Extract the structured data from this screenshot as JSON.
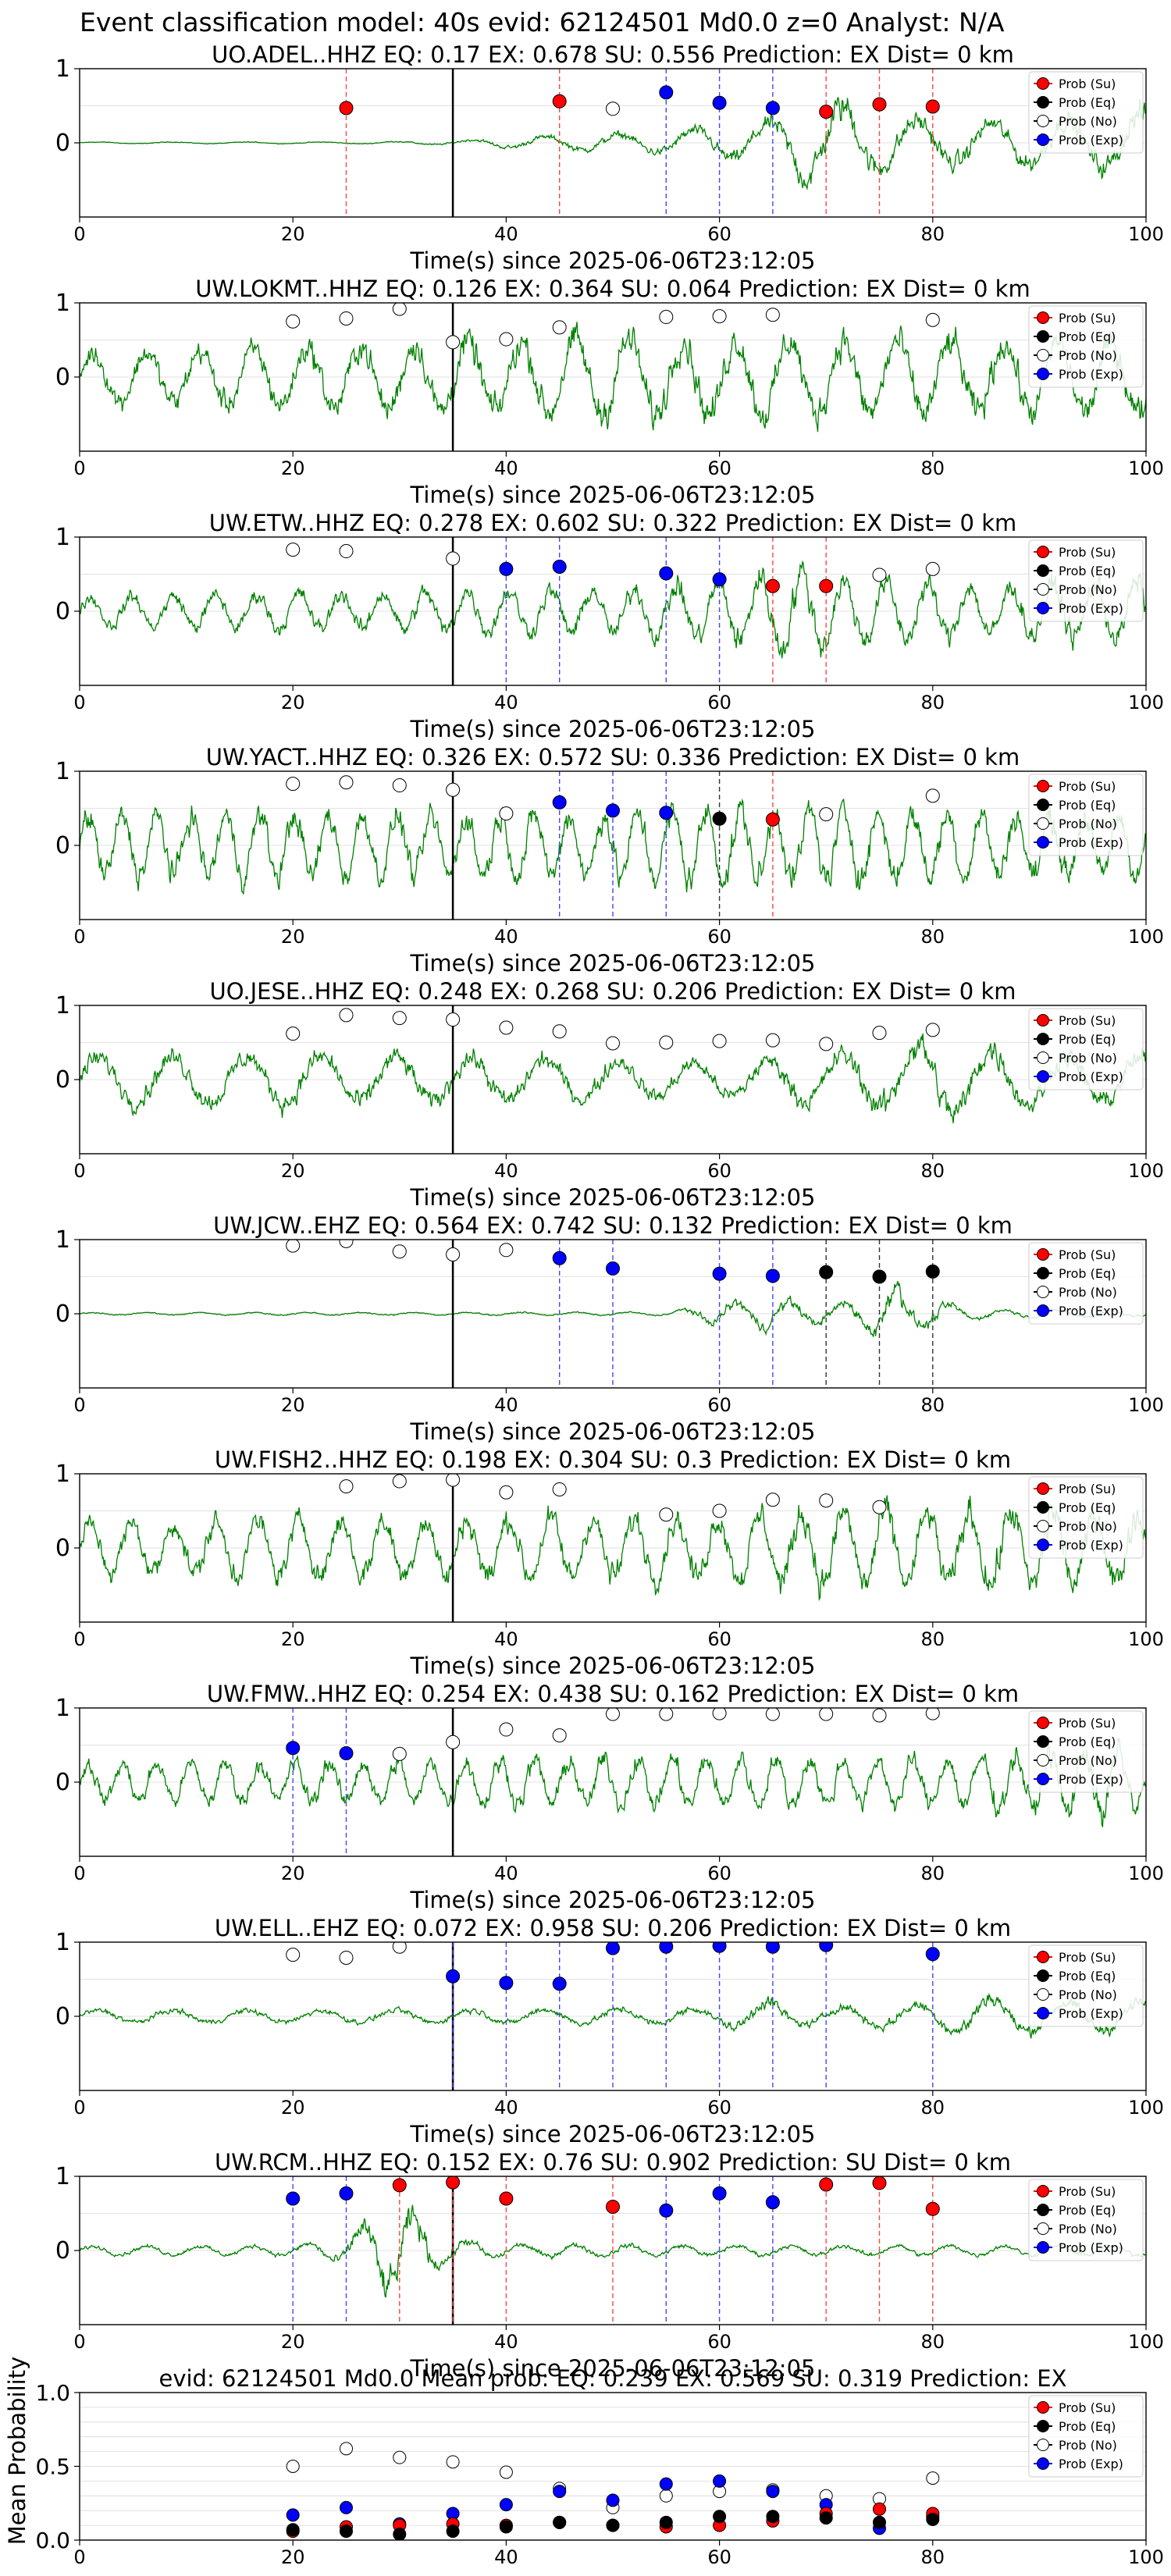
{
  "suptitle": "Event classification model: 40s evid: 62124501 Md0.0 z=0 Analyst: N/A",
  "legend_labels": [
    "Prob (Su)",
    "Prob (Eq)",
    "Prob (No)",
    "Prob (Exp)"
  ],
  "colors": {
    "waveform": "#008000",
    "su": "#ff0000",
    "eq": "#000000",
    "no": "#ffffff",
    "exp": "#0000ff",
    "su_line": "#ff4444",
    "eq_line": "#333333",
    "exp_line": "#4444ff",
    "axes": "#000000",
    "grid": "#d9d9d9"
  },
  "chart_data": [
    {
      "type": "line",
      "title": "UO.ADEL..HHZ   EQ: 0.17  EX: 0.678  SU: 0.556   Prediction: EX    Dist= 0 km",
      "xlabel": "Time(s) since 2025-06-06T23:12:05",
      "xlim": [
        0,
        100
      ],
      "ylim": [
        -1,
        1
      ],
      "xticks": [
        "0",
        "20",
        "40",
        "60",
        "80",
        "100"
      ],
      "yticks": [
        "0",
        "1"
      ],
      "arrival_time": 35,
      "waveform_envelope": [
        [
          0,
          0.02
        ],
        [
          25,
          0.02
        ],
        [
          35,
          0.05
        ],
        [
          40,
          0.12
        ],
        [
          55,
          0.25
        ],
        [
          65,
          0.5
        ],
        [
          68,
          0.9
        ],
        [
          72,
          0.95
        ],
        [
          76,
          0.6
        ],
        [
          85,
          0.5
        ],
        [
          95,
          0.6
        ],
        [
          100,
          0.75
        ]
      ],
      "series": [
        {
          "name": "Prob (Su)",
          "x": [
            25,
            45,
            70,
            75,
            80
          ],
          "y": [
            0.47,
            0.56,
            0.42,
            0.52,
            0.49
          ]
        },
        {
          "name": "Prob (No)",
          "x": [
            50
          ],
          "y": [
            0.46
          ]
        },
        {
          "name": "Prob (Exp)",
          "x": [
            55,
            60,
            65
          ],
          "y": [
            0.68,
            0.54,
            0.47
          ]
        }
      ]
    },
    {
      "type": "line",
      "title": "UW.LOKMT..HHZ   EQ: 0.126  EX: 0.364  SU: 0.064   Prediction: EX    Dist= 0 km",
      "xlabel": "Time(s) since 2025-06-06T23:12:05",
      "xlim": [
        0,
        100
      ],
      "ylim": [
        -1,
        1
      ],
      "xticks": [
        "0",
        "20",
        "40",
        "60",
        "80",
        "100"
      ],
      "yticks": [
        "0",
        "1"
      ],
      "arrival_time": 35,
      "waveform_envelope": [
        [
          0,
          0.6
        ],
        [
          15,
          0.7
        ],
        [
          30,
          0.85
        ],
        [
          40,
          0.9
        ],
        [
          55,
          1.0
        ],
        [
          70,
          0.95
        ],
        [
          85,
          0.9
        ],
        [
          100,
          0.9
        ]
      ],
      "series": [
        {
          "name": "Prob (No)",
          "x": [
            20,
            25,
            30,
            35,
            40,
            45,
            55,
            60,
            65,
            80
          ],
          "y": [
            0.75,
            0.79,
            0.92,
            0.47,
            0.51,
            0.67,
            0.81,
            0.82,
            0.84,
            0.77
          ]
        }
      ]
    },
    {
      "type": "line",
      "title": "UW.ETW..HHZ   EQ: 0.278  EX: 0.602  SU: 0.322   Prediction: EX    Dist= 0 km",
      "xlabel": "Time(s) since 2025-06-06T23:12:05",
      "xlim": [
        0,
        100
      ],
      "ylim": [
        -1,
        1
      ],
      "xticks": [
        "0",
        "20",
        "40",
        "60",
        "80",
        "100"
      ],
      "yticks": [
        "0",
        "1"
      ],
      "arrival_time": 35,
      "waveform_envelope": [
        [
          0,
          0.35
        ],
        [
          20,
          0.45
        ],
        [
          35,
          0.5
        ],
        [
          50,
          0.55
        ],
        [
          60,
          0.7
        ],
        [
          67,
          1.0
        ],
        [
          72,
          0.75
        ],
        [
          85,
          0.6
        ],
        [
          100,
          0.75
        ]
      ],
      "series": [
        {
          "name": "Prob (Su)",
          "x": [
            65,
            70
          ],
          "y": [
            0.34,
            0.34
          ]
        },
        {
          "name": "Prob (No)",
          "x": [
            20,
            25,
            35,
            75,
            80
          ],
          "y": [
            0.83,
            0.81,
            0.71,
            0.49,
            0.57
          ]
        },
        {
          "name": "Prob (Exp)",
          "x": [
            40,
            45,
            55,
            60
          ],
          "y": [
            0.57,
            0.6,
            0.51,
            0.43
          ]
        }
      ]
    },
    {
      "type": "line",
      "title": "UW.YACT..HHZ   EQ: 0.326  EX: 0.572  SU: 0.336   Prediction: EX    Dist= 0 km",
      "xlabel": "Time(s) since 2025-06-06T23:12:05",
      "xlim": [
        0,
        100
      ],
      "ylim": [
        -1,
        1
      ],
      "xticks": [
        "0",
        "20",
        "40",
        "60",
        "80",
        "100"
      ],
      "yticks": [
        "0",
        "1"
      ],
      "arrival_time": 35,
      "waveform_envelope": [
        [
          0,
          0.75
        ],
        [
          20,
          0.8
        ],
        [
          35,
          0.75
        ],
        [
          50,
          0.8
        ],
        [
          65,
          0.9
        ],
        [
          80,
          0.8
        ],
        [
          100,
          0.75
        ]
      ],
      "series": [
        {
          "name": "Prob (Su)",
          "x": [
            65
          ],
          "y": [
            0.35
          ]
        },
        {
          "name": "Prob (Eq)",
          "x": [
            60
          ],
          "y": [
            0.36
          ]
        },
        {
          "name": "Prob (No)",
          "x": [
            20,
            25,
            30,
            35,
            40,
            70,
            80
          ],
          "y": [
            0.83,
            0.85,
            0.81,
            0.75,
            0.43,
            0.42,
            0.67
          ]
        },
        {
          "name": "Prob (Exp)",
          "x": [
            45,
            50,
            55
          ],
          "y": [
            0.58,
            0.47,
            0.44
          ]
        }
      ]
    },
    {
      "type": "line",
      "title": "UO.JESE..HHZ   EQ: 0.248  EX: 0.268  SU: 0.206   Prediction: EX    Dist= 0 km",
      "xlabel": "Time(s) since 2025-06-06T23:12:05",
      "xlim": [
        0,
        100
      ],
      "ylim": [
        -1,
        1
      ],
      "xticks": [
        "0",
        "20",
        "40",
        "60",
        "80",
        "100"
      ],
      "yticks": [
        "0",
        "1"
      ],
      "arrival_time": 35,
      "waveform_envelope": [
        [
          0,
          0.55
        ],
        [
          20,
          0.6
        ],
        [
          40,
          0.55
        ],
        [
          60,
          0.4
        ],
        [
          75,
          0.7
        ],
        [
          80,
          0.95
        ],
        [
          90,
          0.6
        ],
        [
          100,
          0.55
        ]
      ],
      "series": [
        {
          "name": "Prob (No)",
          "x": [
            20,
            25,
            30,
            35,
            40,
            45,
            50,
            55,
            60,
            65,
            70,
            75,
            80
          ],
          "y": [
            0.62,
            0.87,
            0.83,
            0.81,
            0.7,
            0.65,
            0.49,
            0.5,
            0.52,
            0.53,
            0.48,
            0.63,
            0.67
          ]
        }
      ]
    },
    {
      "type": "line",
      "title": "UW.JCW..EHZ   EQ: 0.564  EX: 0.742  SU: 0.132   Prediction: EX    Dist= 0 km",
      "xlabel": "Time(s) since 2025-06-06T23:12:05",
      "xlim": [
        0,
        100
      ],
      "ylim": [
        -1,
        1
      ],
      "xticks": [
        "0",
        "20",
        "40",
        "60",
        "80",
        "100"
      ],
      "yticks": [
        "0",
        "1"
      ],
      "arrival_time": 35,
      "waveform_envelope": [
        [
          0,
          0.03
        ],
        [
          55,
          0.04
        ],
        [
          60,
          0.25
        ],
        [
          65,
          0.35
        ],
        [
          70,
          0.2
        ],
        [
          74,
          0.35
        ],
        [
          76,
          0.9
        ],
        [
          78,
          0.35
        ],
        [
          85,
          0.1
        ],
        [
          100,
          0.06
        ]
      ],
      "series": [
        {
          "name": "Prob (Eq)",
          "x": [
            70,
            75,
            80
          ],
          "y": [
            0.56,
            0.5,
            0.57
          ]
        },
        {
          "name": "Prob (No)",
          "x": [
            20,
            25,
            30,
            35,
            40
          ],
          "y": [
            0.92,
            0.98,
            0.84,
            0.8,
            0.86
          ]
        },
        {
          "name": "Prob (Exp)",
          "x": [
            45,
            50,
            60,
            65
          ],
          "y": [
            0.75,
            0.61,
            0.54,
            0.51
          ]
        }
      ]
    },
    {
      "type": "line",
      "title": "UW.FISH2..HHZ   EQ: 0.198  EX: 0.304  SU: 0.3   Prediction: EX    Dist= 0 km",
      "xlabel": "Time(s) since 2025-06-06T23:12:05",
      "xlim": [
        0,
        100
      ],
      "ylim": [
        -1,
        1
      ],
      "xticks": [
        "0",
        "20",
        "40",
        "60",
        "80",
        "100"
      ],
      "yticks": [
        "0",
        "1"
      ],
      "arrival_time": 35,
      "waveform_envelope": [
        [
          0,
          0.6
        ],
        [
          20,
          0.7
        ],
        [
          40,
          0.75
        ],
        [
          60,
          0.75
        ],
        [
          70,
          0.95
        ],
        [
          80,
          0.9
        ],
        [
          90,
          1.0
        ],
        [
          100,
          0.8
        ]
      ],
      "series": [
        {
          "name": "Prob (No)",
          "x": [
            25,
            30,
            35,
            40,
            45,
            55,
            60,
            65,
            70,
            75
          ],
          "y": [
            0.83,
            0.9,
            0.92,
            0.75,
            0.79,
            0.45,
            0.5,
            0.65,
            0.64,
            0.55
          ]
        }
      ]
    },
    {
      "type": "line",
      "title": "UW.FMW..HHZ   EQ: 0.254  EX: 0.438  SU: 0.162   Prediction: EX    Dist= 0 km",
      "xlabel": "Time(s) since 2025-06-06T23:12:05",
      "xlim": [
        0,
        100
      ],
      "ylim": [
        -1,
        1
      ],
      "xticks": [
        "0",
        "20",
        "40",
        "60",
        "80",
        "100"
      ],
      "yticks": [
        "0",
        "1"
      ],
      "arrival_time": 35,
      "waveform_envelope": [
        [
          0,
          0.45
        ],
        [
          20,
          0.5
        ],
        [
          40,
          0.55
        ],
        [
          60,
          0.6
        ],
        [
          80,
          0.55
        ],
        [
          93,
          0.75
        ],
        [
          96,
          0.95
        ],
        [
          100,
          0.55
        ]
      ],
      "series": [
        {
          "name": "Prob (No)",
          "x": [
            30,
            35,
            40,
            45,
            50,
            55,
            60,
            65,
            70,
            75,
            80
          ],
          "y": [
            0.38,
            0.54,
            0.71,
            0.63,
            0.92,
            0.92,
            0.93,
            0.92,
            0.92,
            0.9,
            0.93
          ]
        },
        {
          "name": "Prob (Exp)",
          "x": [
            20,
            25
          ],
          "y": [
            0.46,
            0.39
          ]
        }
      ]
    },
    {
      "type": "line",
      "title": "UW.ELL..EHZ   EQ: 0.072  EX: 0.958  SU: 0.206   Prediction: EX    Dist= 0 km",
      "xlabel": "Time(s) since 2025-06-06T23:12:05",
      "xlim": [
        0,
        100
      ],
      "ylim": [
        -1,
        1
      ],
      "xticks": [
        "0",
        "20",
        "40",
        "60",
        "80",
        "100"
      ],
      "yticks": [
        "0",
        "1"
      ],
      "arrival_time": 35,
      "waveform_envelope": [
        [
          0,
          0.15
        ],
        [
          30,
          0.15
        ],
        [
          60,
          0.2
        ],
        [
          64,
          0.45
        ],
        [
          67,
          0.2
        ],
        [
          80,
          0.3
        ],
        [
          85,
          0.5
        ],
        [
          90,
          0.35
        ],
        [
          100,
          0.35
        ]
      ],
      "series": [
        {
          "name": "Prob (No)",
          "x": [
            20,
            25,
            30
          ],
          "y": [
            0.83,
            0.79,
            0.94
          ]
        },
        {
          "name": "Prob (Exp)",
          "x": [
            35,
            40,
            45,
            50,
            55,
            60,
            65,
            70,
            80
          ],
          "y": [
            0.54,
            0.45,
            0.44,
            0.92,
            0.94,
            0.95,
            0.94,
            0.96,
            0.84
          ]
        }
      ]
    },
    {
      "type": "line",
      "title": "UW.RCM..HHZ   EQ: 0.152  EX: 0.76  SU: 0.902   Prediction: SU    Dist= 0 km",
      "xlabel": "Time(s) since 2025-06-06T23:12:05",
      "xlim": [
        0,
        100
      ],
      "ylim": [
        -1,
        1
      ],
      "xticks": [
        "0",
        "20",
        "40",
        "60",
        "80",
        "100"
      ],
      "yticks": [
        "0",
        "1"
      ],
      "arrival_time": 35,
      "waveform_envelope": [
        [
          0,
          0.1
        ],
        [
          20,
          0.12
        ],
        [
          25,
          0.3
        ],
        [
          28,
          0.95
        ],
        [
          31,
          0.9
        ],
        [
          34,
          0.3
        ],
        [
          40,
          0.15
        ],
        [
          60,
          0.12
        ],
        [
          100,
          0.12
        ]
      ],
      "series": [
        {
          "name": "Prob (Su)",
          "x": [
            30,
            35,
            40,
            50,
            70,
            75,
            80
          ],
          "y": [
            0.88,
            0.92,
            0.7,
            0.59,
            0.89,
            0.91,
            0.56
          ]
        },
        {
          "name": "Prob (Exp)",
          "x": [
            20,
            25,
            55,
            60,
            65
          ],
          "y": [
            0.7,
            0.77,
            0.54,
            0.77,
            0.65
          ]
        }
      ]
    },
    {
      "type": "scatter",
      "title": "evid: 62124501   Md0.0   Mean prob:   EQ: 0.239  EX: 0.569  SU: 0.319   Prediction: EX",
      "xlabel": "",
      "ylabel": "Mean Probability",
      "xlim": [
        0,
        100
      ],
      "ylim": [
        0,
        1
      ],
      "xticks": [
        "0",
        "20",
        "40",
        "60",
        "80",
        "100"
      ],
      "yticks": [
        "0.0",
        "0.5",
        "1.0"
      ],
      "series": [
        {
          "name": "Prob (Su)",
          "x": [
            20,
            25,
            30,
            35,
            40,
            45,
            50,
            55,
            60,
            65,
            70,
            75,
            80
          ],
          "y": [
            0.06,
            0.09,
            0.1,
            0.11,
            0.1,
            0.12,
            0.1,
            0.09,
            0.1,
            0.13,
            0.18,
            0.21,
            0.18
          ]
        },
        {
          "name": "Prob (Eq)",
          "x": [
            20,
            25,
            30,
            35,
            40,
            45,
            50,
            55,
            60,
            65,
            70,
            75,
            80
          ],
          "y": [
            0.07,
            0.06,
            0.04,
            0.06,
            0.09,
            0.12,
            0.1,
            0.12,
            0.16,
            0.16,
            0.15,
            0.12,
            0.14
          ]
        },
        {
          "name": "Prob (No)",
          "x": [
            20,
            25,
            30,
            35,
            40,
            45,
            50,
            55,
            60,
            65,
            70,
            75,
            80
          ],
          "y": [
            0.5,
            0.62,
            0.56,
            0.53,
            0.46,
            0.35,
            0.22,
            0.3,
            0.33,
            0.34,
            0.3,
            0.28,
            0.42
          ]
        },
        {
          "name": "Prob (Exp)",
          "x": [
            20,
            25,
            30,
            35,
            40,
            45,
            50,
            55,
            60,
            65,
            70,
            75,
            80
          ],
          "y": [
            0.17,
            0.22,
            0.11,
            0.18,
            0.24,
            0.33,
            0.27,
            0.38,
            0.4,
            0.33,
            0.24,
            0.08,
            0.16
          ]
        }
      ]
    }
  ]
}
